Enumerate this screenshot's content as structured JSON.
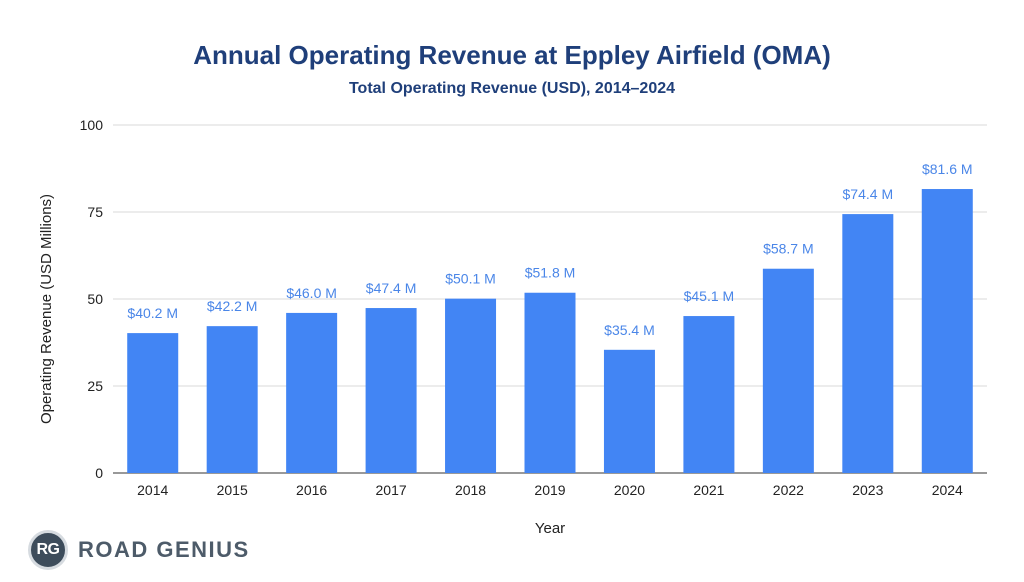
{
  "chart_data": {
    "type": "bar",
    "title": "Annual Operating Revenue at Eppley Airfield (OMA)",
    "subtitle": "Total Operating Revenue (USD), 2014–2024",
    "xlabel": "Year",
    "ylabel": "Operating Revenue (USD Millions)",
    "ylim": [
      0,
      100
    ],
    "yticks": [
      0,
      25,
      50,
      75,
      100
    ],
    "grid": true,
    "categories": [
      "2014",
      "2015",
      "2016",
      "2017",
      "2018",
      "2019",
      "2020",
      "2021",
      "2022",
      "2023",
      "2024"
    ],
    "values": [
      40.2,
      42.2,
      46.0,
      47.4,
      50.1,
      51.8,
      35.4,
      45.1,
      58.7,
      74.4,
      81.6
    ],
    "data_labels": [
      "$40.2 M",
      "$42.2 M",
      "$46.0 M",
      "$47.4 M",
      "$50.1 M",
      "$51.8 M",
      "$35.4 M",
      "$45.1 M",
      "$58.7 M",
      "$74.4 M",
      "$81.6 M"
    ],
    "bar_color": "#4285f4",
    "label_color": "#4a86e8"
  },
  "brand": {
    "badge_text": "RG",
    "name": "ROAD GENIUS"
  }
}
